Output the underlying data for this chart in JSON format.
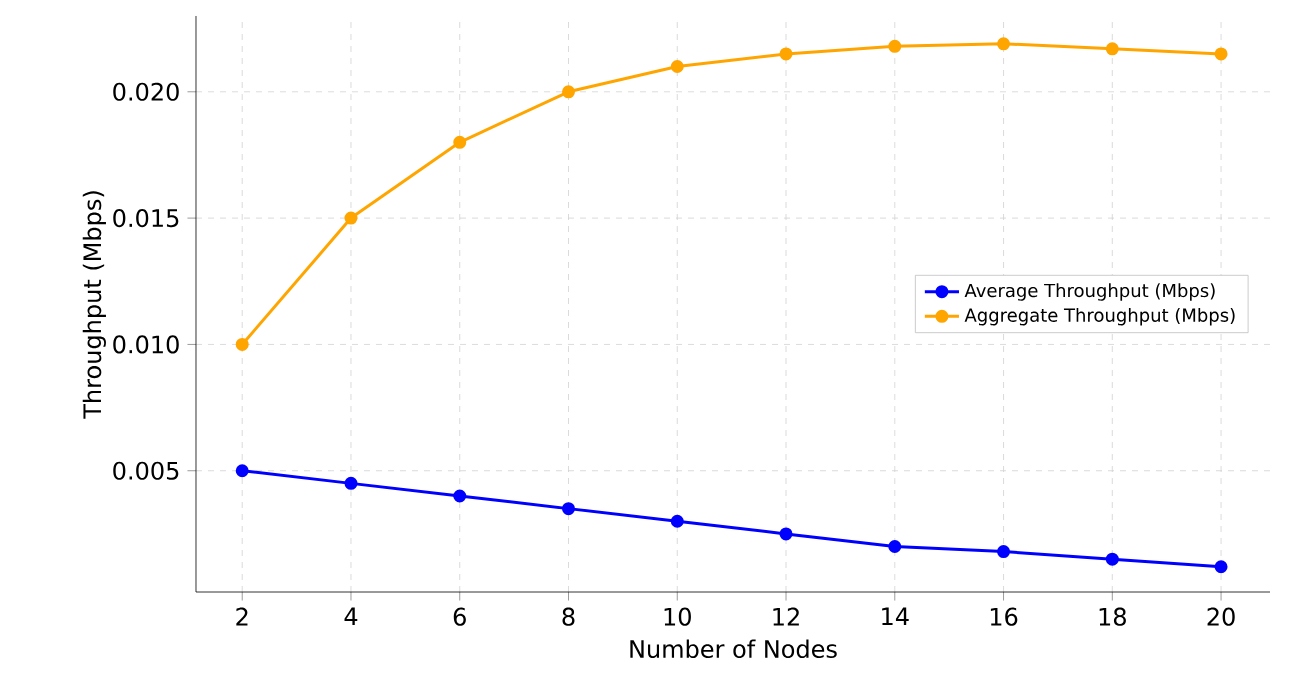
{
  "chart_data": {
    "type": "line",
    "xlabel": "Number of Nodes",
    "ylabel": "Throughput (Mbps)",
    "x": [
      2,
      4,
      6,
      8,
      10,
      12,
      14,
      16,
      18,
      20
    ],
    "series": [
      {
        "name": "Average Throughput (Mbps)",
        "color": "#0000ff",
        "values": [
          0.005,
          0.0045,
          0.004,
          0.0035,
          0.003,
          0.0025,
          0.002,
          0.0018,
          0.0015,
          0.0012
        ]
      },
      {
        "name": "Aggregate Throughput (Mbps)",
        "color": "#ffa500",
        "values": [
          0.01,
          0.015,
          0.018,
          0.02,
          0.021,
          0.0215,
          0.0218,
          0.0219,
          0.0217,
          0.0215
        ]
      }
    ],
    "xlim": [
      1.15,
      20.9
    ],
    "ylim": [
      0.0002,
      0.023
    ],
    "xticks": [
      2,
      4,
      6,
      8,
      10,
      12,
      14,
      16,
      18,
      20
    ],
    "yticks": [
      {
        "value": 0.005,
        "label": "0.005"
      },
      {
        "value": 0.01,
        "label": "0.010"
      },
      {
        "value": 0.015,
        "label": "0.015"
      },
      {
        "value": 0.02,
        "label": "0.020"
      }
    ],
    "grid": true,
    "legend": "right",
    "marker": "circle",
    "line_style": "solid"
  }
}
